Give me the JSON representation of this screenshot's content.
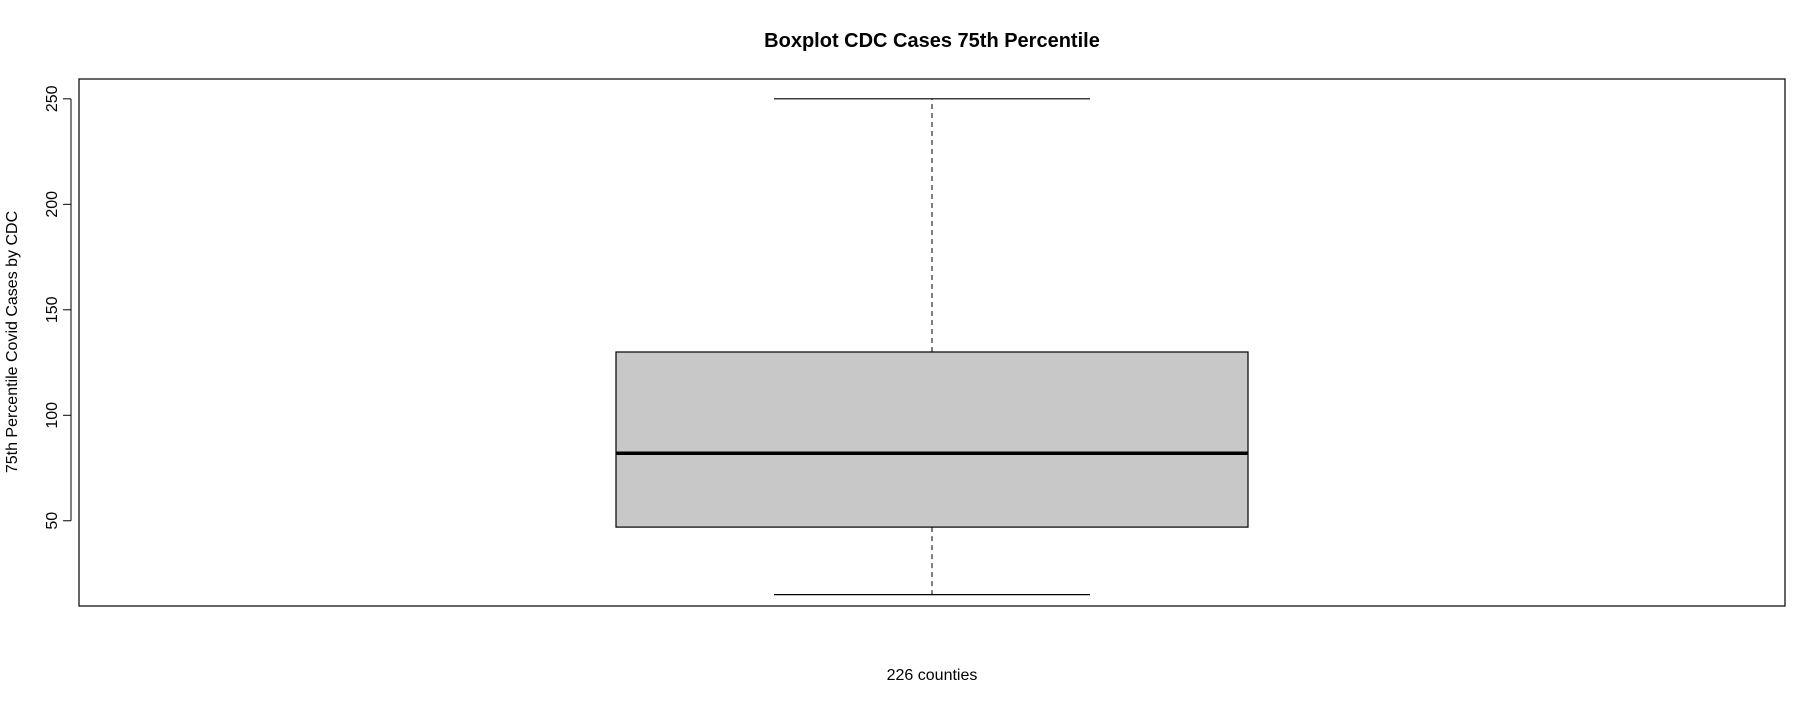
{
  "chart_data": {
    "type": "box",
    "title": "Boxplot CDC Cases 75th Percentile",
    "xlabel": "226 counties",
    "ylabel": "75th Percentile Covid Cases by CDC",
    "ylim": [
      9.6,
      259.4
    ],
    "yticks": [
      "50",
      "100",
      "150",
      "200",
      "250"
    ],
    "box": {
      "whisker_low": 15,
      "q1": 47,
      "median": 82,
      "q3": 130,
      "whisker_high": 250
    },
    "colors": {
      "box_fill": "#c8c8c8",
      "stroke": "#000000"
    }
  }
}
